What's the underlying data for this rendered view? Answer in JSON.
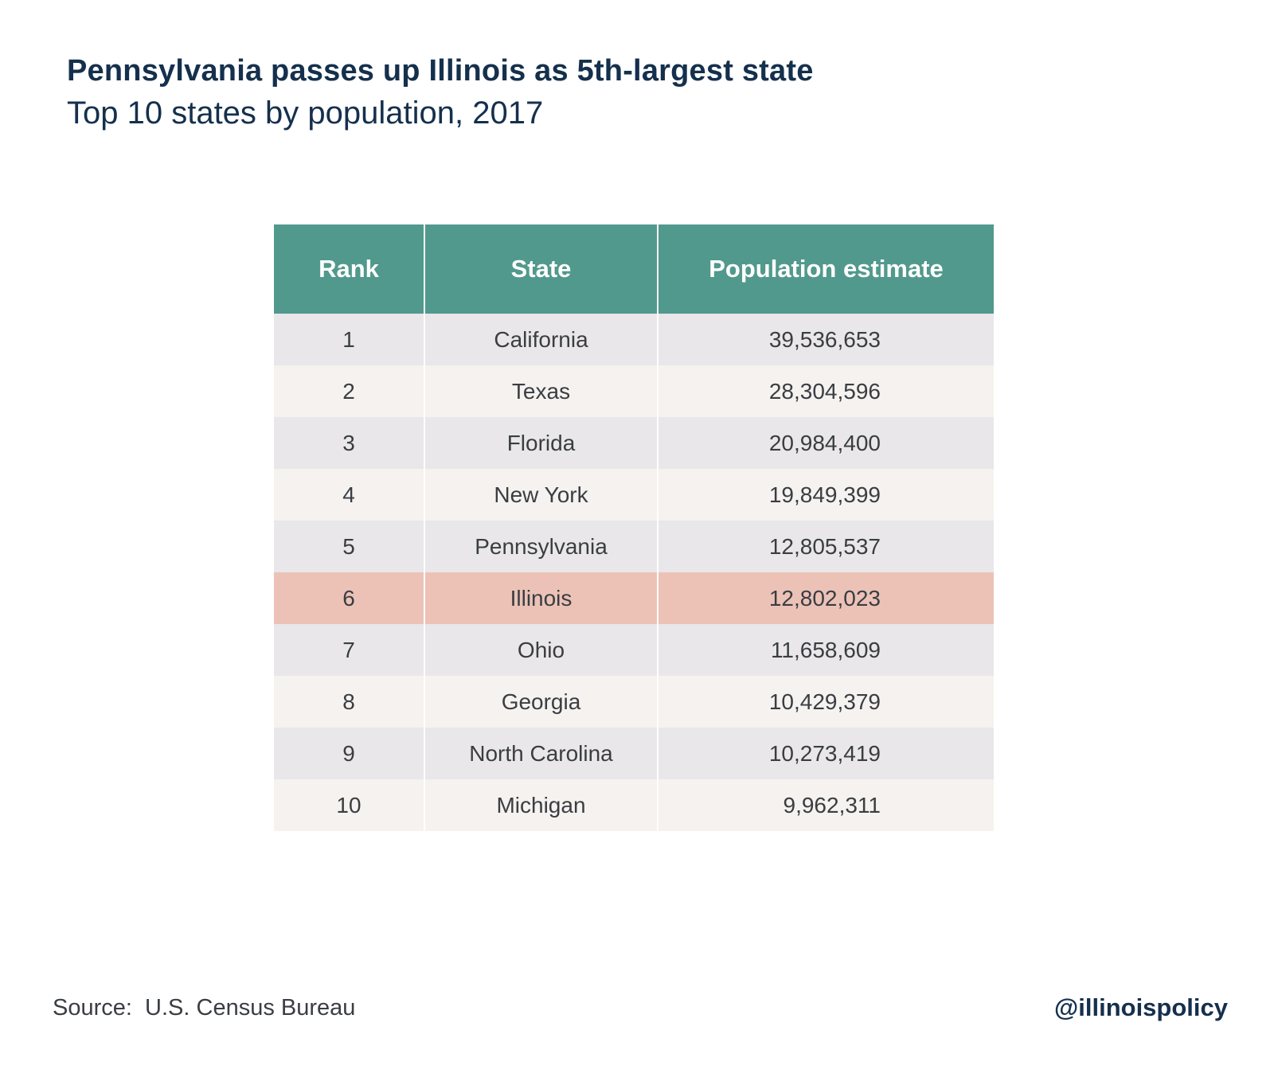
{
  "chart_data": {
    "type": "table",
    "title": "Pennsylvania passes up Illinois as 5th-largest state",
    "subtitle": "Top 10 states by population, 2017",
    "columns": [
      "Rank",
      "State",
      "Population estimate"
    ],
    "rows": [
      {
        "rank": "1",
        "state": "California",
        "population": "39,536,653"
      },
      {
        "rank": "2",
        "state": "Texas",
        "population": "28,304,596"
      },
      {
        "rank": "3",
        "state": "Florida",
        "population": "20,984,400"
      },
      {
        "rank": "4",
        "state": "New York",
        "population": "19,849,399"
      },
      {
        "rank": "5",
        "state": "Pennsylvania",
        "population": "12,805,537"
      },
      {
        "rank": "6",
        "state": "Illinois",
        "population": "12,802,023"
      },
      {
        "rank": "7",
        "state": "Ohio",
        "population": "11,658,609"
      },
      {
        "rank": "8",
        "state": "Georgia",
        "population": "10,429,379"
      },
      {
        "rank": "9",
        "state": "North Carolina",
        "population": "10,273,419"
      },
      {
        "rank": "10",
        "state": "Michigan",
        "population": "9,962,311"
      }
    ],
    "highlight_state": "Illinois"
  },
  "footer": {
    "source": "Source:  U.S. Census Bureau",
    "handle": "@illinoispolicy"
  },
  "colors": {
    "header_bg": "#51998c",
    "header_text": "#ffffff",
    "title_text": "#15304d",
    "row_odd": "#e9e7e9",
    "row_even": "#f5f2ef",
    "row_highlight": "#ecc2b7",
    "cell_text": "#3a3d42"
  }
}
